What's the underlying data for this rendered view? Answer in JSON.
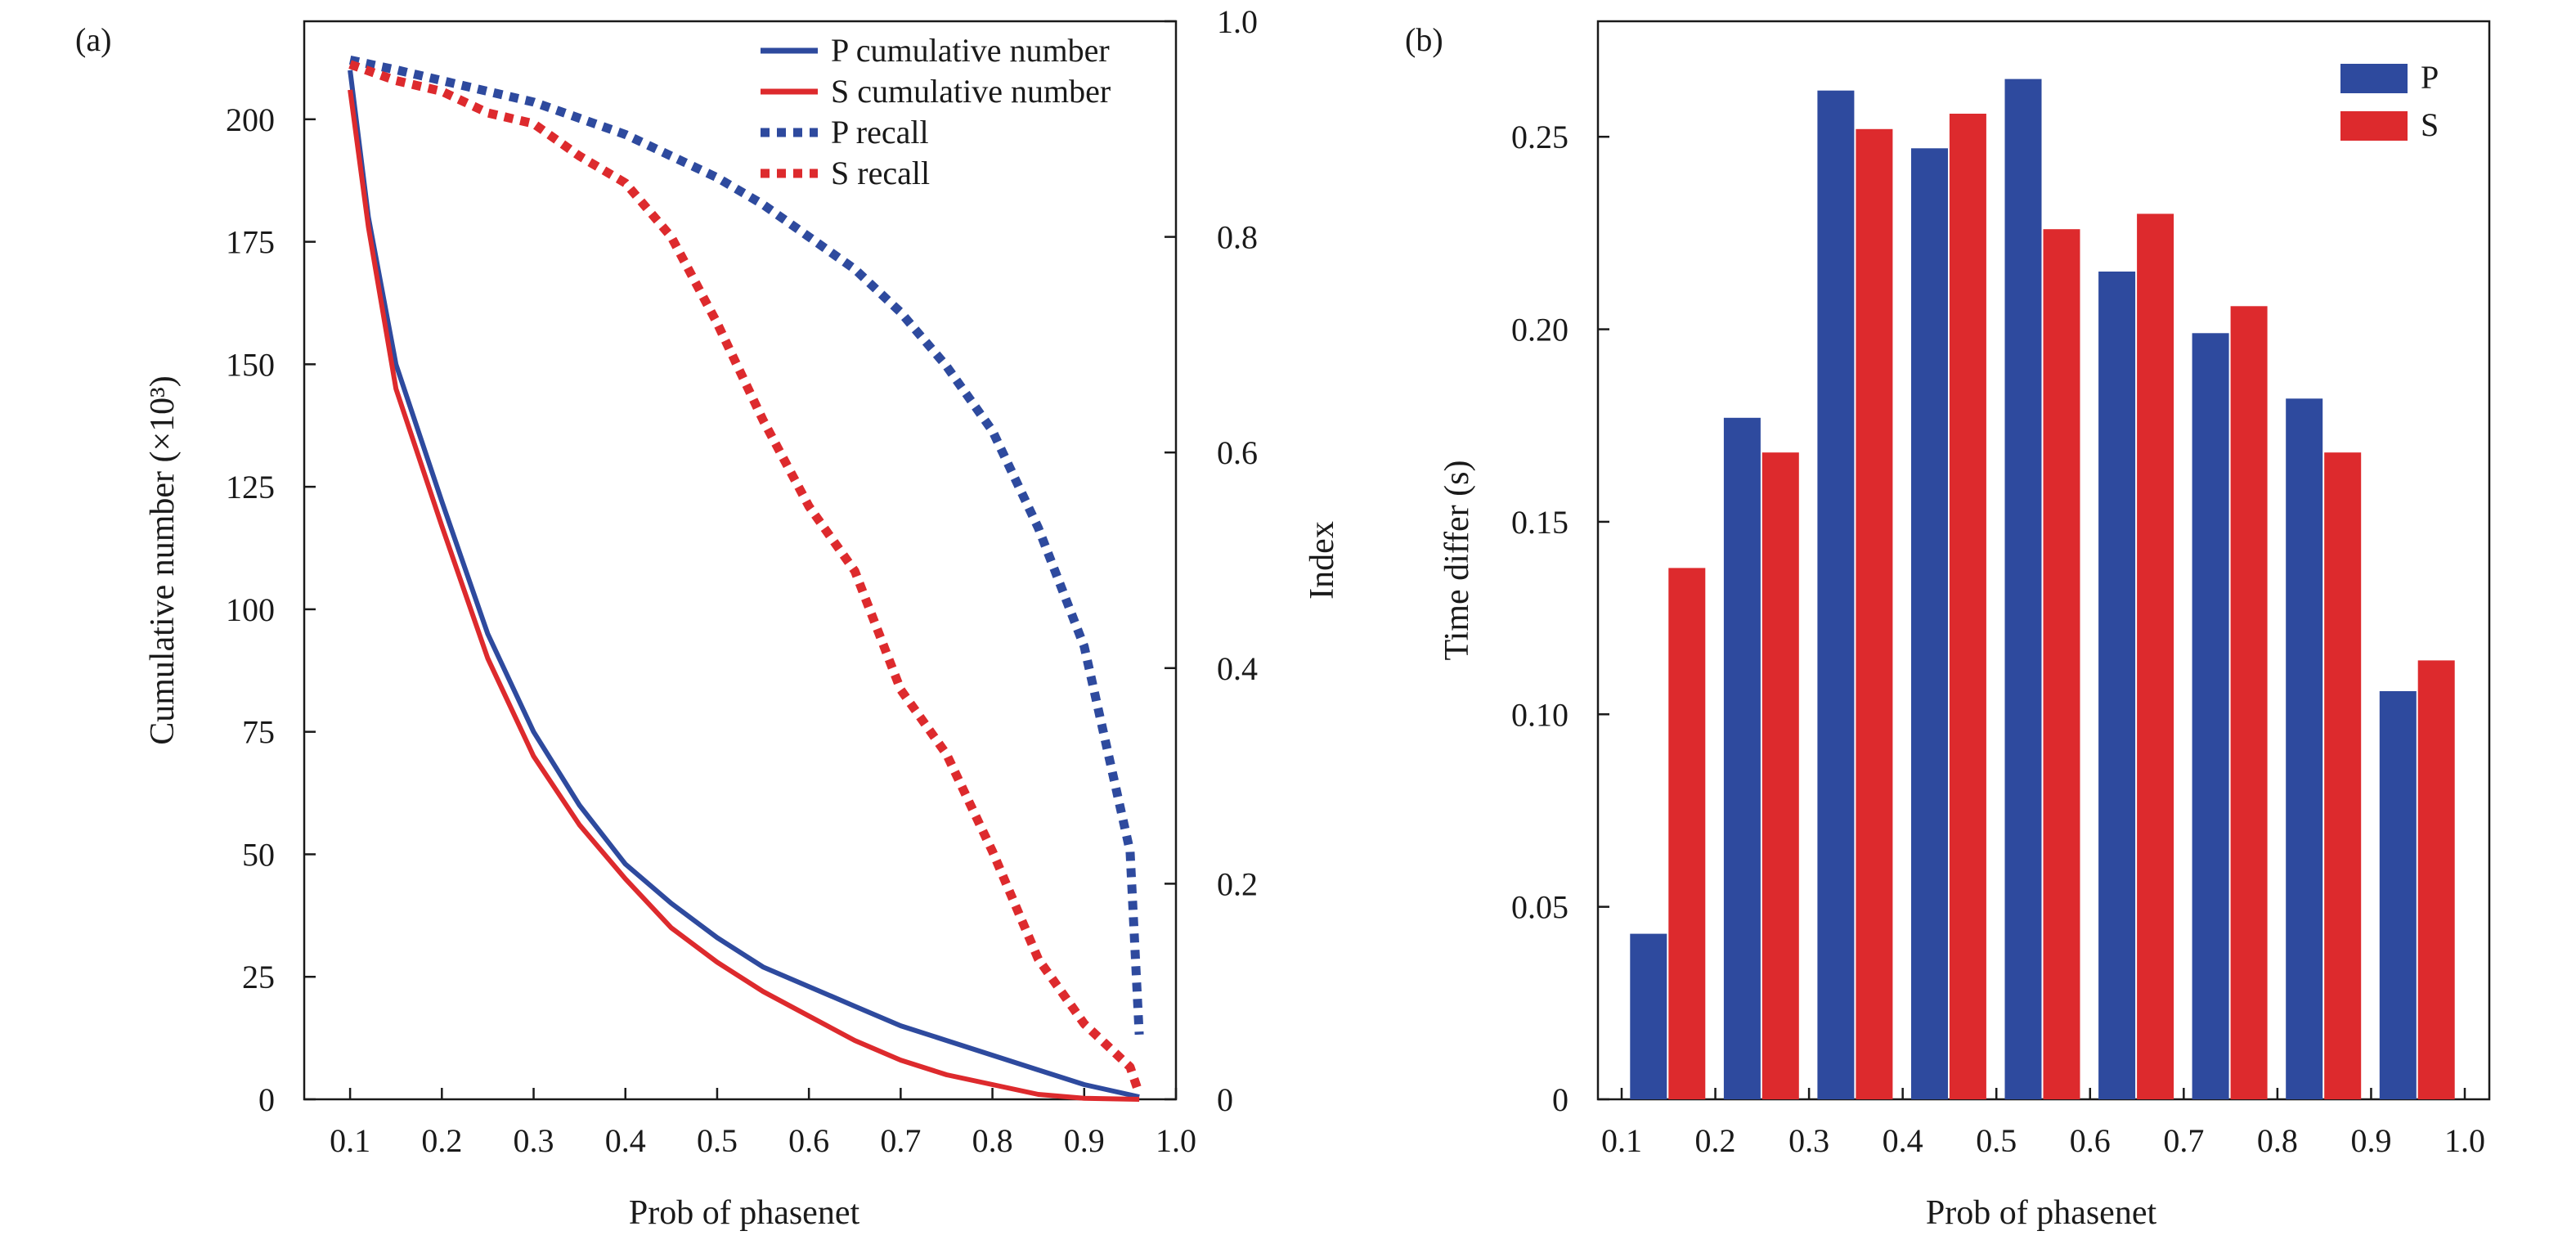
{
  "colors": {
    "P": "#2e4a9e",
    "S": "#dd2a2d",
    "axis": "#1a1a1a"
  },
  "chart_data": [
    {
      "panel": "(a)",
      "type": "line",
      "xlabel": "Prob of phasenet",
      "ylabel": "Cumulative number (×10³)",
      "ylabel_right": "Index",
      "xlim": [
        0.05,
        1.0
      ],
      "ylim": [
        0,
        220
      ],
      "ylim_right": [
        0,
        1.0
      ],
      "x_ticks": [
        "0.1",
        "0.2",
        "0.3",
        "0.4",
        "0.5",
        "0.6",
        "0.7",
        "0.8",
        "0.9",
        "1.0"
      ],
      "y_ticks": [
        "0",
        "25",
        "50",
        "75",
        "100",
        "125",
        "150",
        "175",
        "200"
      ],
      "y_ticks_right": [
        "0",
        "0.2",
        "0.4",
        "0.6",
        "0.8",
        "1.0"
      ],
      "legend_position": "top-right",
      "series": [
        {
          "name": "P cumulative number",
          "axis": "left",
          "style": "solid",
          "x": [
            0.1,
            0.12,
            0.15,
            0.2,
            0.25,
            0.3,
            0.35,
            0.4,
            0.45,
            0.5,
            0.55,
            0.6,
            0.65,
            0.7,
            0.75,
            0.8,
            0.85,
            0.9,
            0.96
          ],
          "y": [
            210,
            180,
            150,
            122,
            95,
            75,
            60,
            48,
            40,
            33,
            27,
            23,
            19,
            15,
            12,
            9,
            6,
            3,
            0.5
          ]
        },
        {
          "name": "S cumulative number",
          "axis": "left",
          "style": "solid",
          "x": [
            0.1,
            0.12,
            0.15,
            0.2,
            0.25,
            0.3,
            0.35,
            0.4,
            0.45,
            0.5,
            0.55,
            0.6,
            0.65,
            0.7,
            0.75,
            0.8,
            0.85,
            0.9,
            0.96
          ],
          "y": [
            206,
            178,
            145,
            117,
            90,
            70,
            56,
            45,
            35,
            28,
            22,
            17,
            12,
            8,
            5,
            3,
            1,
            0.2,
            0
          ]
        },
        {
          "name": "P recall",
          "axis": "right",
          "style": "dotted",
          "x": [
            0.1,
            0.15,
            0.2,
            0.25,
            0.3,
            0.35,
            0.4,
            0.45,
            0.5,
            0.55,
            0.6,
            0.65,
            0.7,
            0.75,
            0.8,
            0.85,
            0.9,
            0.95,
            0.96
          ],
          "y": [
            0.964,
            0.955,
            0.945,
            0.935,
            0.925,
            0.91,
            0.895,
            0.875,
            0.855,
            0.83,
            0.8,
            0.77,
            0.73,
            0.68,
            0.62,
            0.53,
            0.42,
            0.23,
            0.06
          ]
        },
        {
          "name": "S recall",
          "axis": "right",
          "style": "dotted",
          "x": [
            0.1,
            0.15,
            0.2,
            0.25,
            0.3,
            0.35,
            0.4,
            0.45,
            0.5,
            0.55,
            0.6,
            0.65,
            0.7,
            0.75,
            0.8,
            0.85,
            0.9,
            0.95,
            0.96
          ],
          "y": [
            0.96,
            0.945,
            0.935,
            0.915,
            0.905,
            0.875,
            0.85,
            0.8,
            0.72,
            0.63,
            0.55,
            0.49,
            0.38,
            0.32,
            0.23,
            0.13,
            0.07,
            0.03,
            0.005
          ]
        }
      ]
    },
    {
      "panel": "(b)",
      "type": "bar",
      "xlabel": "Prob of phasenet",
      "ylabel": "Time differ (s)",
      "xlim": [
        0.1,
        1.0
      ],
      "ylim": [
        0,
        0.28
      ],
      "x_ticks": [
        "0.1",
        "0.2",
        "0.3",
        "0.4",
        "0.5",
        "0.6",
        "0.7",
        "0.8",
        "0.9",
        "1.0"
      ],
      "y_ticks": [
        "0",
        "0.05",
        "0.10",
        "0.15",
        "0.20",
        "0.25"
      ],
      "legend_position": "top-right",
      "bins": [
        0.1,
        0.2,
        0.3,
        0.4,
        0.5,
        0.6,
        0.7,
        0.8,
        0.9
      ],
      "series": [
        {
          "name": "P",
          "values": [
            0.043,
            0.177,
            0.262,
            0.247,
            0.265,
            0.215,
            0.199,
            0.182,
            0.106
          ]
        },
        {
          "name": "S",
          "values": [
            0.138,
            0.168,
            0.252,
            0.256,
            0.226,
            0.23,
            0.206,
            0.168,
            0.114
          ]
        }
      ]
    }
  ]
}
